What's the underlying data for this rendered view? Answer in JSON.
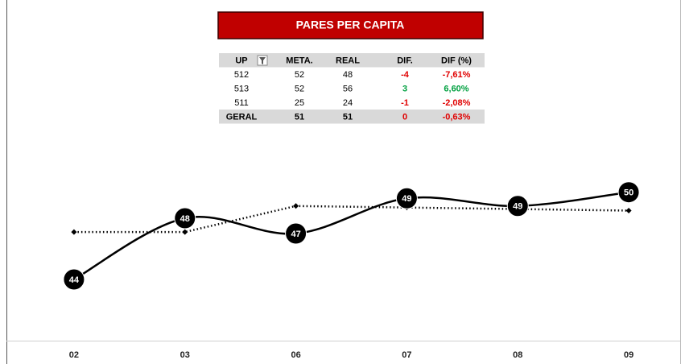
{
  "header": {
    "title": "PARES PER CAPITA"
  },
  "table": {
    "columns": [
      "UP",
      "META.",
      "REAL",
      "DIF.",
      "DIF (%)"
    ],
    "rows": [
      [
        "512",
        "52",
        "48",
        "-4",
        "-7,61%"
      ],
      [
        "513",
        "52",
        "56",
        "3",
        "6,60%"
      ],
      [
        "511",
        "25",
        "24",
        "-1",
        "-2,08%"
      ],
      [
        "GERAL",
        "51",
        "51",
        "0",
        "-0,63%"
      ]
    ]
  },
  "chart_data": {
    "type": "line",
    "categories": [
      "02",
      "03",
      "06",
      "07",
      "08",
      "09"
    ],
    "series": [
      {
        "color": "#000000",
        "style": "solid",
        "smooth": true,
        "values": [
          44,
          48,
          47,
          49.3,
          48.8,
          49.7
        ],
        "value_labels": [
          "44",
          "48",
          "47",
          "49",
          "49",
          "50"
        ]
      },
      {
        "color": "#000000",
        "style": "dotted",
        "smooth": false,
        "values": [
          47.1,
          47.1,
          48.8,
          48.7,
          48.6,
          48.5
        ]
      }
    ],
    "ylim": [
      40,
      53
    ]
  }
}
